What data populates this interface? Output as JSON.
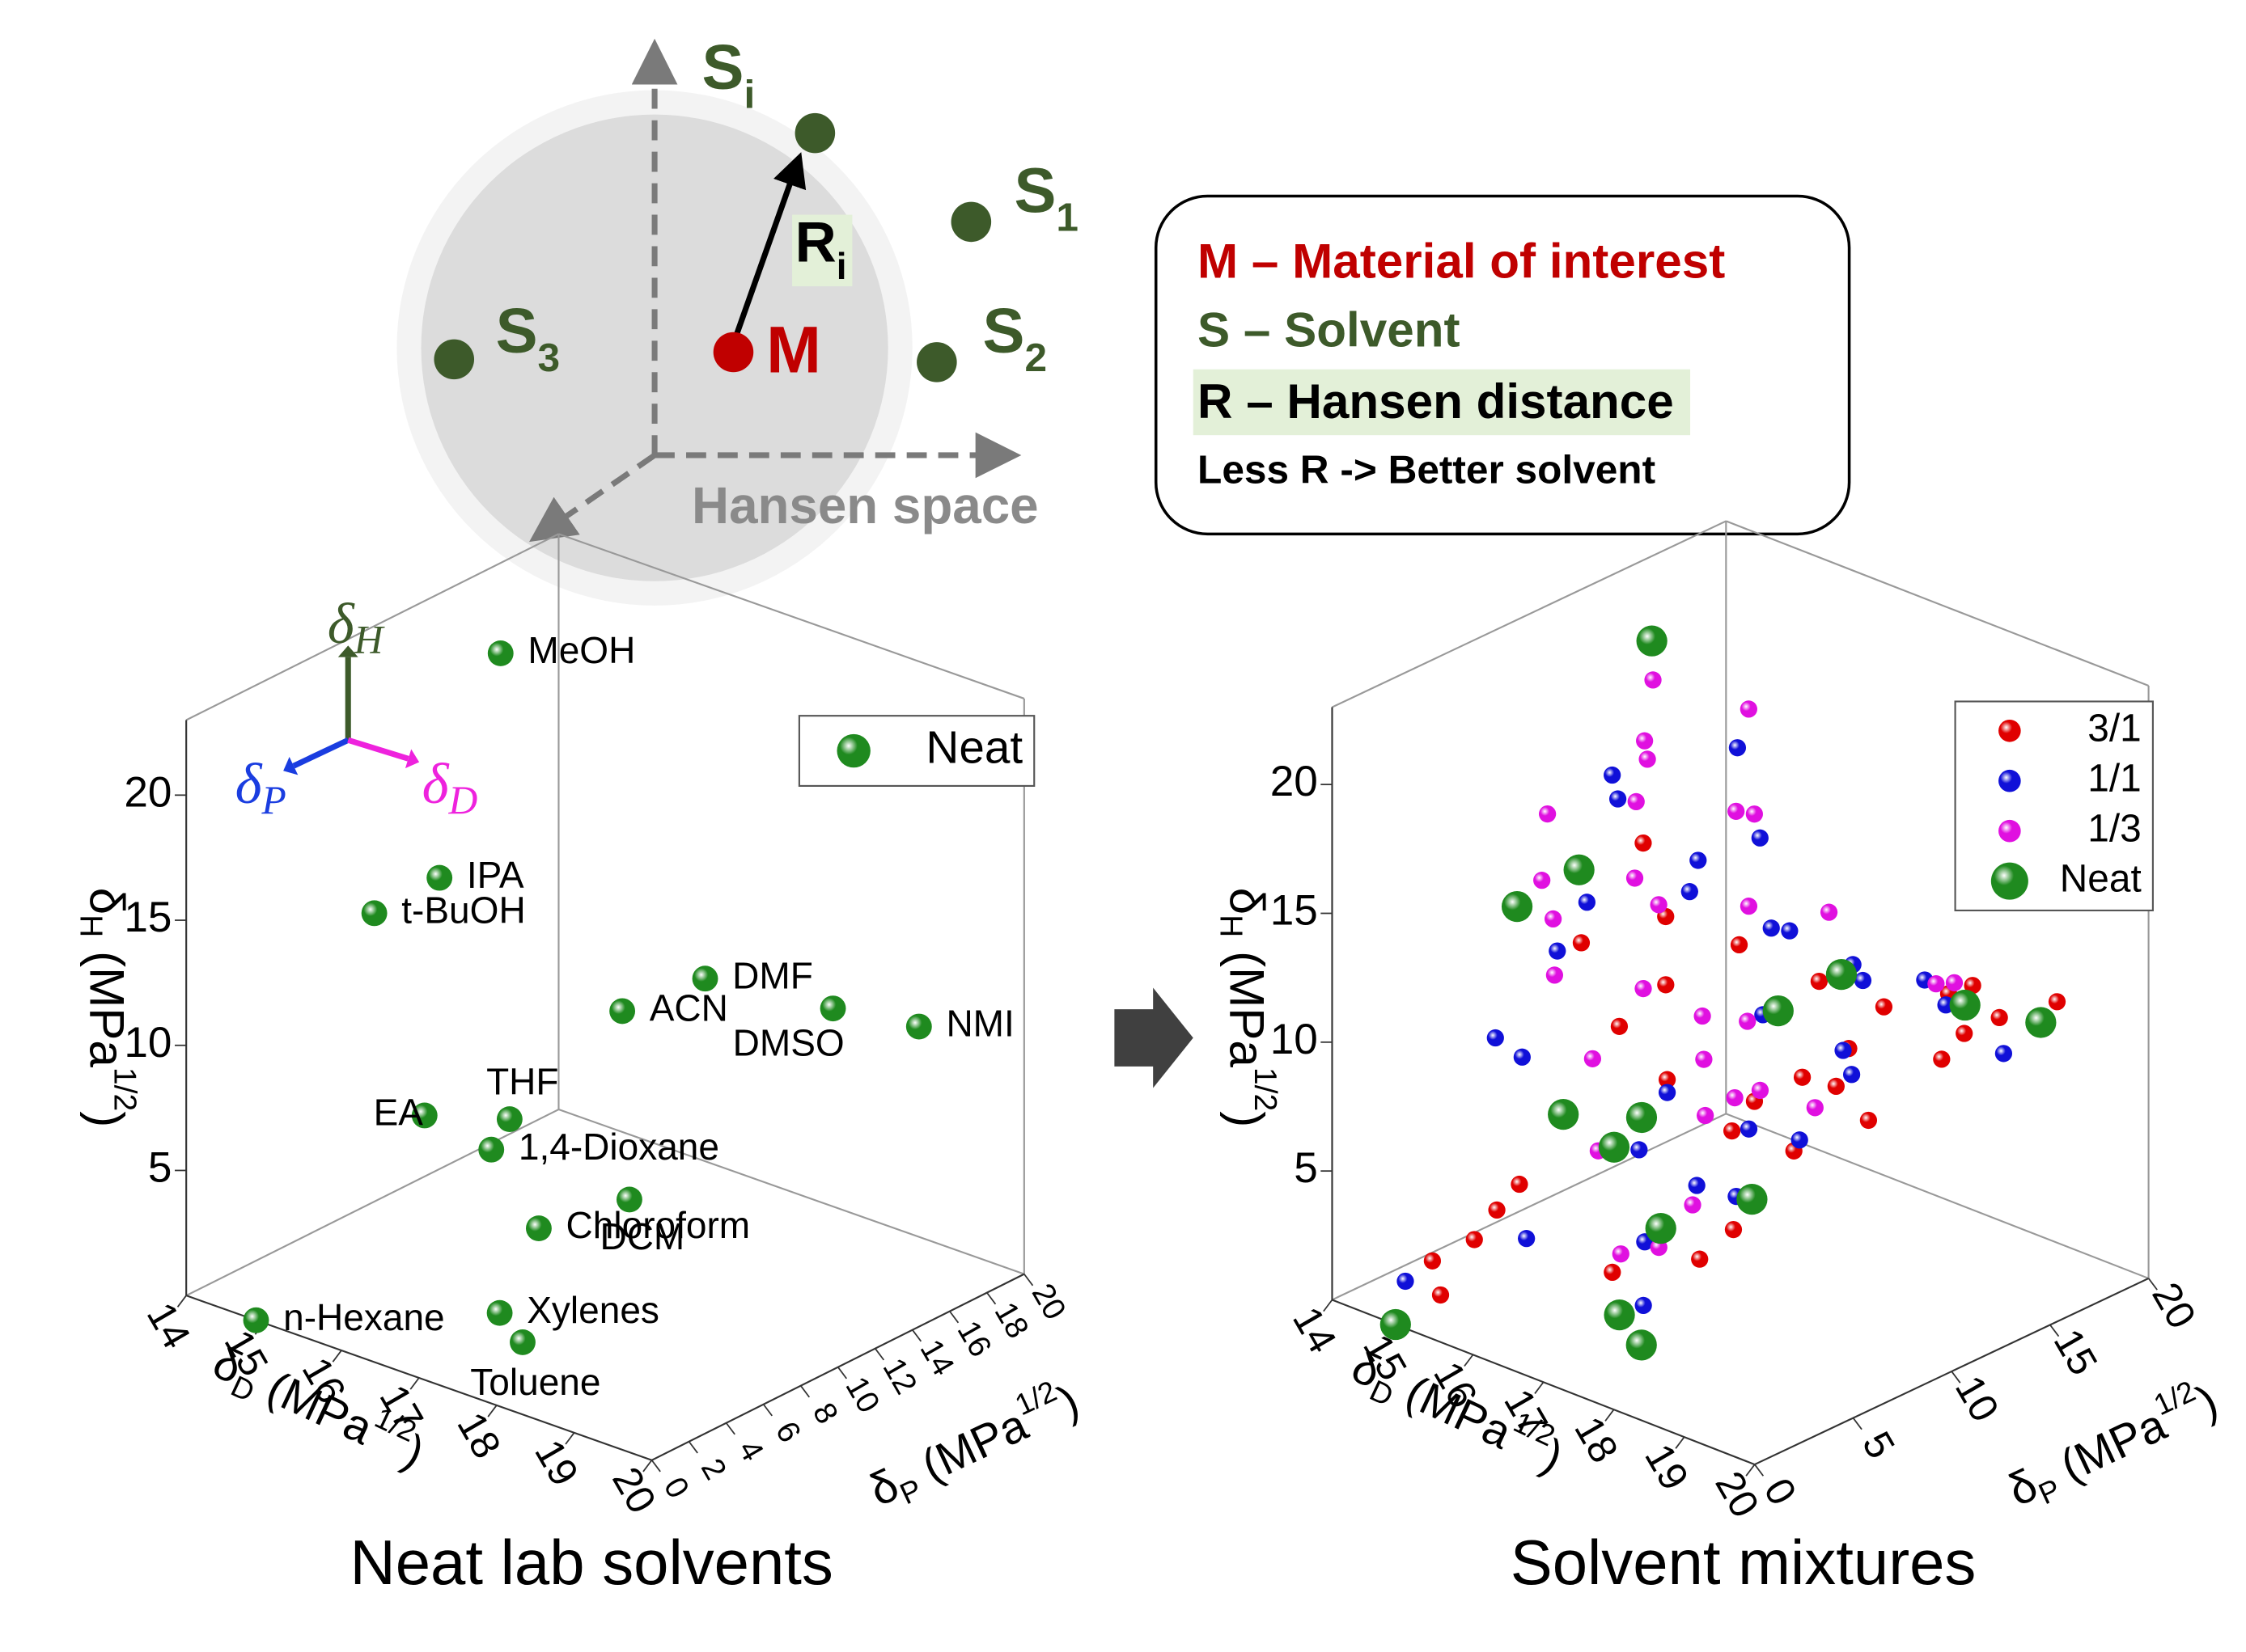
{
  "diagram": {
    "points": [
      {
        "label": "S",
        "sub": "i"
      },
      {
        "label": "S",
        "sub": "1"
      },
      {
        "label": "S",
        "sub": "2"
      },
      {
        "label": "S",
        "sub": "3"
      }
    ],
    "center": "M",
    "distance": {
      "label": "R",
      "sub": "i"
    },
    "space_label": "Hansen space",
    "legend_lines": [
      "M – Material of interest",
      "S – Solvent",
      "R – Hansen distance",
      "Less R -> Better solvent"
    ]
  },
  "chart_data": [
    {
      "type": "scatter3d",
      "title": "Neat lab solvents",
      "xlabel": {
        "symbol": "δ",
        "sub": "D",
        "text": " (MPa",
        "sup": "1/2",
        "close": ")"
      },
      "ylabel": {
        "symbol": "δ",
        "sub": "P",
        "text": " (MPa",
        "sup": "1/2",
        "close": ")"
      },
      "zlabel": {
        "symbol": "δ",
        "sub": "H",
        "text": " (MPa",
        "sup": "1/2",
        "close": ")"
      },
      "xlim": [
        14,
        20
      ],
      "ylim": [
        0,
        20
      ],
      "zlim": [
        0,
        23
      ],
      "xticks": [
        14,
        15,
        16,
        17,
        18,
        19,
        20
      ],
      "yticks": [
        0,
        2,
        4,
        6,
        8,
        10,
        12,
        14,
        16,
        18,
        20
      ],
      "zticks": [
        5,
        10,
        15,
        20
      ],
      "legend": true,
      "axis_icon": [
        {
          "symbol": "δ",
          "sub": "H",
          "color": "#3d5a2a"
        },
        {
          "symbol": "δ",
          "sub": "P",
          "color": "#1a3de0"
        },
        {
          "symbol": "δ",
          "sub": "D",
          "color": "#ee22dd"
        }
      ],
      "series": [
        {
          "name": "Neat",
          "color": "#1f8a1f",
          "point_labels": [
            "MeOH",
            "IPA",
            "t-BuOH",
            "DMF",
            "DMSO",
            "NMI",
            "ACN",
            "THF",
            "EA",
            "DCM",
            "1,4-Dioxane",
            "Chloroform",
            "n-Hexane",
            "Xylenes",
            "Toluene"
          ],
          "x": [
            15.1,
            15.8,
            15.2,
            17.4,
            18.4,
            19.7,
            15.3,
            16.8,
            15.8,
            18.2,
            17.5,
            17.8,
            14.9,
            17.8,
            18.0
          ],
          "y": [
            12.3,
            6.1,
            5.1,
            13.7,
            16.4,
            15.6,
            18.0,
            5.7,
            5.3,
            6.3,
            1.8,
            3.1,
            0,
            1.0,
            1.4
          ],
          "z": [
            22.3,
            16.4,
            14.7,
            11.3,
            10.2,
            11.2,
            6.1,
            8.0,
            7.2,
            6.1,
            9.0,
            5.7,
            0,
            3.1,
            2.0
          ]
        }
      ]
    },
    {
      "type": "scatter3d",
      "title": "Solvent mixtures",
      "xlabel": {
        "symbol": "δ",
        "sub": "D",
        "text": " (MPa",
        "sup": "1/2",
        "close": ")"
      },
      "ylabel": {
        "symbol": "δ",
        "sub": "P",
        "text": " (MPa",
        "sup": "1/2",
        "close": ")"
      },
      "zlabel": {
        "symbol": "δ",
        "sub": "H",
        "text": " (MPa",
        "sup": "1/2",
        "close": ")"
      },
      "xlim": [
        14,
        20
      ],
      "ylim": [
        0,
        20
      ],
      "zlim": [
        0,
        23
      ],
      "xticks": [
        14,
        15,
        16,
        17,
        18,
        19,
        20
      ],
      "yticks": [
        0,
        5,
        10,
        15,
        20
      ],
      "zticks": [
        5,
        10,
        15,
        20
      ],
      "legend": true,
      "series": [
        {
          "name": "3/1",
          "color": "#e00000",
          "x": [
            15.8,
            16.2,
            17.0,
            17.5,
            18.0,
            16.5,
            15.5,
            17.8,
            18.6,
            19.0,
            16.0,
            17.2,
            17.9,
            15.2,
            15.6,
            18.3,
            19.2,
            16.8,
            17.6,
            18.1,
            15.9,
            16.4,
            17.3,
            18.9,
            19.4,
            17.0,
            16.1,
            18.4,
            15.4,
            17.7
          ],
          "y": [
            10.5,
            12.8,
            14.0,
            15.5,
            17.0,
            8.0,
            3.0,
            12.0,
            14.5,
            16.0,
            5.5,
            10.0,
            9.5,
            0.8,
            1.5,
            5.0,
            13.5,
            7.0,
            11.0,
            4.0,
            9.0,
            6.0,
            8.5,
            15.0,
            17.5,
            3.5,
            2.0,
            11.5,
            0.5,
            13.0
          ],
          "z": [
            13.0,
            11.5,
            10.5,
            9.5,
            10.0,
            12.0,
            4.0,
            8.0,
            9.0,
            10.5,
            14.0,
            7.5,
            6.5,
            2.5,
            3.5,
            5.5,
            11.0,
            9.0,
            8.5,
            4.5,
            16.5,
            11.0,
            7.0,
            12.0,
            11.0,
            3.0,
            6.0,
            7.5,
            1.5,
            9.0
          ]
        },
        {
          "name": "1/1",
          "color": "#1010d8",
          "x": [
            15.4,
            16.0,
            16.6,
            17.2,
            17.8,
            18.4,
            15.2,
            15.8,
            16.4,
            17.0,
            17.6,
            18.2,
            18.8,
            19.2,
            15.6,
            16.2,
            16.8,
            17.4,
            18.0,
            14.9,
            15.3,
            16.9,
            17.5,
            18.6,
            15.1,
            16.3,
            17.1,
            17.9,
            19.0,
            15.7
          ],
          "y": [
            9.5,
            11.0,
            13.0,
            15.0,
            16.5,
            8.0,
            4.0,
            6.5,
            10.0,
            12.5,
            3.0,
            5.5,
            14.0,
            15.5,
            8.5,
            2.0,
            7.0,
            9.0,
            1.5,
            0.5,
            5.0,
            11.5,
            6.0,
            10.5,
            7.5,
            13.5,
            4.5,
            12.0,
            8.5,
            14.5
          ],
          "z": [
            17.5,
            14.0,
            12.5,
            11.0,
            10.5,
            8.0,
            10.0,
            15.0,
            16.0,
            13.0,
            5.0,
            6.5,
            11.5,
            9.5,
            19.0,
            4.0,
            8.5,
            7.0,
            3.5,
            1.5,
            9.0,
            10.0,
            6.0,
            13.5,
            12.0,
            15.5,
            7.5,
            9.5,
            11.0,
            18.0
          ]
        },
        {
          "name": "1/3",
          "color": "#e010e0",
          "x": [
            15.2,
            15.5,
            15.8,
            16.1,
            16.4,
            16.7,
            17.0,
            17.3,
            17.6,
            17.9,
            18.2,
            15.3,
            15.6,
            15.9,
            16.2,
            16.5,
            16.8,
            17.1,
            17.4,
            17.7,
            18.0,
            18.5,
            15.4,
            16.0,
            16.6,
            17.2,
            17.8,
            15.1,
            16.3,
            18.8
          ],
          "y": [
            12.0,
            10.5,
            9.0,
            13.0,
            8.0,
            11.5,
            14.5,
            7.0,
            6.0,
            5.0,
            9.5,
            6.0,
            5.5,
            4.5,
            7.5,
            12.5,
            3.5,
            10.0,
            2.5,
            8.5,
            4.0,
            15.5,
            11.0,
            14.0,
            6.5,
            9.0,
            3.0,
            7.0,
            5.0,
            13.5
          ],
          "z": [
            21.0,
            19.5,
            18.0,
            16.5,
            15.0,
            14.0,
            13.0,
            12.0,
            11.0,
            9.5,
            8.5,
            15.5,
            14.5,
            13.0,
            16.0,
            17.0,
            7.5,
            10.5,
            4.5,
            9.0,
            6.5,
            11.5,
            18.5,
            20.0,
            12.5,
            8.0,
            5.0,
            17.5,
            10.0,
            12.5
          ]
        },
        {
          "name": "Neat",
          "color": "#1f8a1f",
          "x": [
            15.1,
            15.8,
            15.2,
            17.4,
            18.4,
            19.7,
            15.3,
            16.8,
            15.8,
            18.2,
            17.5,
            17.8,
            14.9,
            17.8,
            18.0
          ],
          "y": [
            12.3,
            6.1,
            5.1,
            13.7,
            16.4,
            15.6,
            18.0,
            5.7,
            5.3,
            6.3,
            1.8,
            3.1,
            0,
            1.0,
            1.4
          ],
          "z": [
            22.3,
            16.4,
            14.7,
            11.3,
            10.2,
            11.2,
            6.1,
            8.0,
            7.2,
            6.1,
            9.0,
            5.7,
            0,
            3.1,
            2.0
          ]
        }
      ]
    }
  ]
}
